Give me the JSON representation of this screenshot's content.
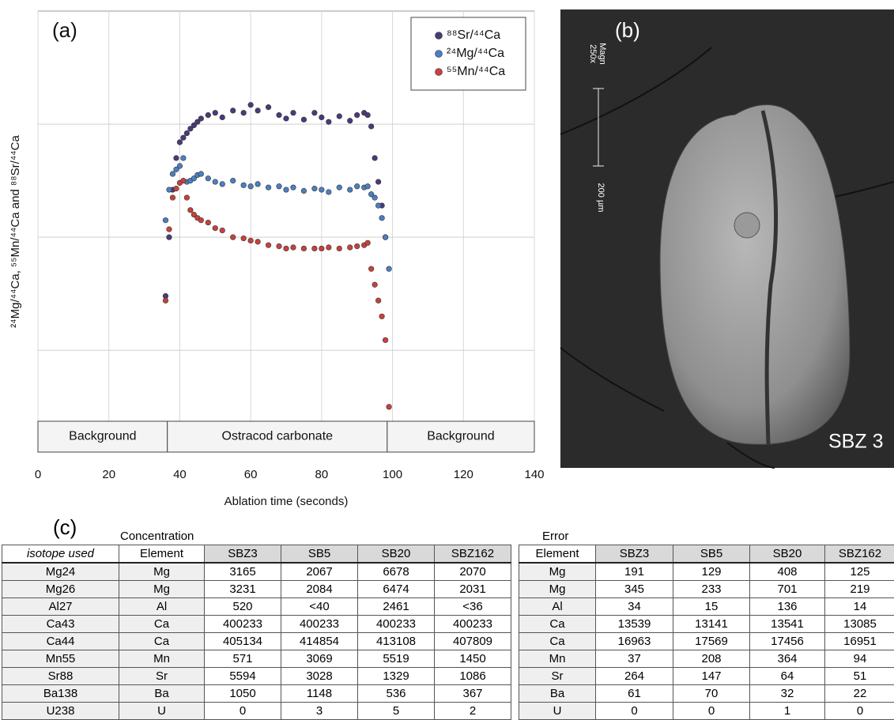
{
  "chart_data": {
    "type": "scatter",
    "panel_label": "(a)",
    "x_label": "Ablation time (seconds)",
    "y_label": "²⁴Mg/⁴⁴Ca, ⁵⁵Mn/⁴⁴Ca and ⁸⁸Sr/⁴⁴Ca",
    "x": [
      36,
      37,
      38,
      39,
      40,
      41,
      42,
      43,
      44,
      45,
      46,
      48,
      50,
      52,
      55,
      58,
      60,
      62,
      65,
      68,
      70,
      72,
      75,
      78,
      80,
      82,
      85,
      88,
      90,
      92,
      93,
      94,
      95,
      96,
      97,
      98,
      99
    ],
    "series": [
      {
        "name": "⁸⁸Sr/⁴⁴Ca",
        "color": "#4b3a78",
        "values": [
          1.48,
          2.0,
          2.42,
          2.7,
          2.84,
          2.88,
          2.92,
          2.96,
          2.99,
          3.02,
          3.05,
          3.08,
          3.1,
          3.06,
          3.12,
          3.1,
          3.17,
          3.12,
          3.15,
          3.08,
          3.05,
          3.1,
          3.04,
          3.1,
          3.06,
          3.02,
          3.07,
          3.03,
          3.08,
          3.1,
          3.08,
          2.98,
          2.7,
          2.49,
          2.28,
          2.0,
          null
        ]
      },
      {
        "name": "²⁴Mg/⁴⁴Ca",
        "color": "#4a80c2",
        "values": [
          2.15,
          2.42,
          2.56,
          2.6,
          2.63,
          2.7,
          2.49,
          2.5,
          2.52,
          2.55,
          2.56,
          2.52,
          2.49,
          2.47,
          2.5,
          2.46,
          2.45,
          2.47,
          2.44,
          2.45,
          2.42,
          2.44,
          2.41,
          2.43,
          2.42,
          2.4,
          2.44,
          2.42,
          2.45,
          2.44,
          2.45,
          2.38,
          2.35,
          2.28,
          2.17,
          2.0,
          1.72
        ]
      },
      {
        "name": "⁵⁵Mn/⁴⁴Ca",
        "color": "#c8413c",
        "values": [
          1.44,
          2.07,
          2.35,
          2.43,
          2.48,
          2.5,
          2.35,
          2.24,
          2.2,
          2.17,
          2.15,
          2.13,
          2.08,
          2.06,
          2.0,
          1.99,
          1.97,
          1.96,
          1.93,
          1.92,
          1.9,
          1.91,
          1.9,
          1.9,
          1.9,
          1.91,
          1.9,
          1.91,
          1.92,
          1.93,
          1.95,
          1.72,
          1.58,
          1.44,
          1.3,
          1.09,
          0.5
        ]
      }
    ],
    "regions": [
      {
        "label": "Background",
        "start": 0,
        "end": 36.5
      },
      {
        "label": "Ostracod carbonate",
        "start": 36.5,
        "end": 98.5
      },
      {
        "label": "Background",
        "start": 98.5,
        "end": 140
      }
    ],
    "xlim": [
      0,
      140
    ],
    "xticks": [
      0,
      20,
      40,
      60,
      80,
      100,
      120,
      140
    ],
    "ylim": [
      0.1,
      4
    ],
    "yticks": [
      1,
      2,
      3
    ],
    "grid": true,
    "legend": "top-right"
  },
  "panel_b": {
    "label": "(b)",
    "magnification": [
      "Magn",
      "250x"
    ],
    "scale_bar": "200 µm",
    "sample": "SBZ 3"
  },
  "table": {
    "label": "(c)",
    "concentration": {
      "title": "Concentration",
      "columns": [
        "isotope used",
        "Element",
        "SBZ3",
        "SB5",
        "SB20",
        "SBZ162"
      ],
      "rows": [
        [
          "Mg24",
          "Mg",
          3165,
          2067,
          6678,
          2070
        ],
        [
          "Mg26",
          "Mg",
          3231,
          2084,
          6474,
          2031
        ],
        [
          "Al27",
          "Al",
          520,
          "<40",
          2461,
          "<36"
        ],
        [
          "Ca43",
          "Ca",
          400233,
          400233,
          400233,
          400233
        ],
        [
          "Ca44",
          "Ca",
          405134,
          414854,
          413108,
          407809
        ],
        [
          "Mn55",
          "Mn",
          571,
          3069,
          5519,
          1450
        ],
        [
          "Sr88",
          "Sr",
          5594,
          3028,
          1329,
          1086
        ],
        [
          "Ba138",
          "Ba",
          1050,
          1148,
          536,
          367
        ],
        [
          "U238",
          "U",
          0,
          3,
          5,
          2
        ]
      ]
    },
    "error": {
      "title": "Error",
      "columns": [
        "Element",
        "SBZ3",
        "SB5",
        "SB20",
        "SBZ162"
      ],
      "rows": [
        [
          "Mg",
          191,
          129,
          408,
          125
        ],
        [
          "Mg",
          345,
          233,
          701,
          219
        ],
        [
          "Al",
          34,
          15,
          136,
          14
        ],
        [
          "Ca",
          13539,
          13141,
          13541,
          13085
        ],
        [
          "Ca",
          16963,
          17569,
          17456,
          16951
        ],
        [
          "Mn",
          37,
          208,
          364,
          94
        ],
        [
          "Sr",
          264,
          147,
          64,
          51
        ],
        [
          "Ba",
          61,
          70,
          32,
          22
        ],
        [
          "U",
          0,
          0,
          1,
          0
        ]
      ]
    }
  }
}
